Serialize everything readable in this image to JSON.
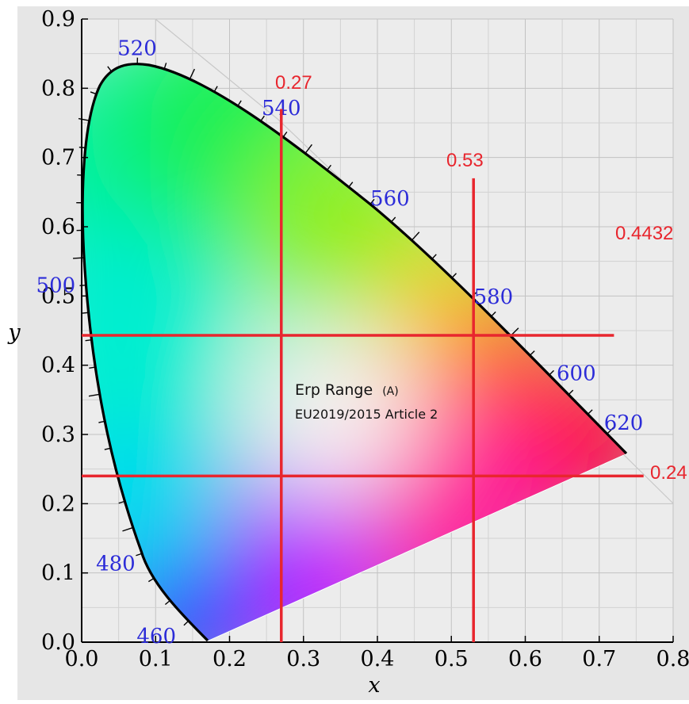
{
  "chart_data": {
    "type": "scatter",
    "chart_kind": "CIE 1931 chromaticity diagram with threshold lines",
    "title": "",
    "xlabel": "x",
    "ylabel": "y",
    "xlim": [
      0,
      0.8
    ],
    "ylim": [
      0,
      0.9
    ],
    "grid": true,
    "x_ticks": [
      "0.0",
      "0.1",
      "0.2",
      "0.3",
      "0.4",
      "0.5",
      "0.6",
      "0.7",
      "0.8"
    ],
    "y_ticks": [
      "0.0",
      "0.1",
      "0.2",
      "0.3",
      "0.4",
      "0.5",
      "0.6",
      "0.7",
      "0.8",
      "0.9"
    ],
    "spectral_locus": [
      {
        "nm": "460",
        "x": 0.144,
        "y": 0.03
      },
      {
        "nm": "480",
        "x": 0.091,
        "y": 0.133
      },
      {
        "nm": "500",
        "x": 0.008,
        "y": 0.538
      },
      {
        "nm": "520",
        "x": 0.074,
        "y": 0.834
      },
      {
        "nm": "540",
        "x": 0.23,
        "y": 0.754
      },
      {
        "nm": "560",
        "x": 0.373,
        "y": 0.624
      },
      {
        "nm": "580",
        "x": 0.512,
        "y": 0.487
      },
      {
        "nm": "600",
        "x": 0.627,
        "y": 0.373
      },
      {
        "nm": "620",
        "x": 0.691,
        "y": 0.308
      }
    ],
    "wavelength_labels": [
      {
        "text": "520",
        "x": 0.075,
        "y": 0.858
      },
      {
        "text": "540",
        "x": 0.27,
        "y": 0.772
      },
      {
        "text": "560",
        "x": 0.417,
        "y": 0.641
      },
      {
        "text": "500",
        "x": -0.035,
        "y": 0.516
      },
      {
        "text": "580",
        "x": 0.557,
        "y": 0.499
      },
      {
        "text": "600",
        "x": 0.669,
        "y": 0.389
      },
      {
        "text": "620",
        "x": 0.733,
        "y": 0.317
      },
      {
        "text": "480",
        "x": 0.046,
        "y": 0.114
      },
      {
        "text": "460",
        "x": 0.101,
        "y": 0.009
      }
    ],
    "threshold_lines": [
      {
        "orientation": "vertical",
        "value": 0.27,
        "label": "0.27",
        "y_range": [
          0.0,
          0.77
        ]
      },
      {
        "orientation": "vertical",
        "value": 0.53,
        "label": "0.53",
        "y_range": [
          0.0,
          0.67
        ]
      },
      {
        "orientation": "horizontal",
        "value": 0.4432,
        "label": "0.4432",
        "x_range": [
          0.0,
          0.72
        ]
      },
      {
        "orientation": "horizontal",
        "value": 0.24,
        "label": "0.24",
        "x_range": [
          0.0,
          0.76
        ]
      }
    ],
    "annotations": [
      {
        "text": "Erp Range",
        "suffix": "(A)"
      },
      {
        "text": "EU2019/2015 Article 2"
      }
    ]
  },
  "colors": {
    "threshold_line": "#e8262e",
    "wavelength_label": "#2c2cd8",
    "background": "#e6e6e6",
    "grid": "#c4c4c4"
  }
}
